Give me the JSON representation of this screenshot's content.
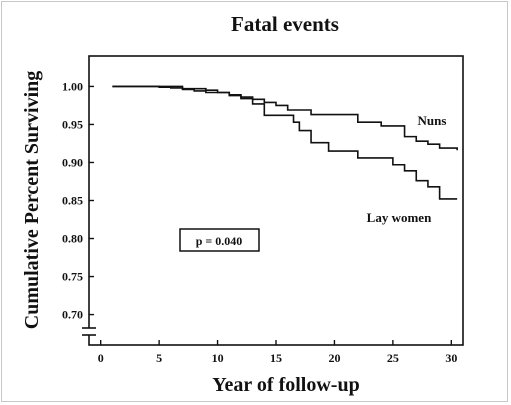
{
  "chart_data": {
    "type": "line",
    "title": "Fatal events",
    "xlabel": "Year of follow-up",
    "ylabel": "Cumulative Percent Surviving",
    "xlim": [
      -1,
      31
    ],
    "ylim": [
      0.66,
      1.04
    ],
    "xticks": [
      0,
      5,
      10,
      15,
      20,
      25,
      30
    ],
    "yticks": [
      0.7,
      0.75,
      0.8,
      0.85,
      0.9,
      0.95,
      1.0
    ],
    "ytick_labels": [
      "0.70",
      "0.75",
      "0.80",
      "0.85",
      "0.90",
      "0.95",
      "1.00"
    ],
    "axis_break": "y",
    "grid": false,
    "annotation": "p = 0.040",
    "series": [
      {
        "name": "Nuns",
        "x": [
          1,
          4,
          5,
          6,
          7,
          8,
          9,
          11,
          12,
          13,
          14,
          15,
          16,
          18,
          22,
          24,
          26,
          27,
          28,
          29,
          30.5
        ],
        "y": [
          1.0,
          1.0,
          0.999,
          0.998,
          0.996,
          0.994,
          0.992,
          0.989,
          0.986,
          0.983,
          0.979,
          0.975,
          0.969,
          0.963,
          0.953,
          0.948,
          0.934,
          0.928,
          0.924,
          0.919,
          0.916
        ]
      },
      {
        "name": "Lay women",
        "x": [
          1,
          5,
          7,
          9,
          10,
          11,
          12,
          13,
          14,
          16.5,
          17,
          18,
          19.5,
          22,
          25,
          26,
          27,
          28,
          29,
          30.5
        ],
        "y": [
          1.0,
          1.0,
          0.997,
          0.995,
          0.992,
          0.988,
          0.984,
          0.977,
          0.962,
          0.953,
          0.942,
          0.926,
          0.915,
          0.906,
          0.897,
          0.889,
          0.876,
          0.868,
          0.852,
          0.852
        ]
      }
    ]
  }
}
